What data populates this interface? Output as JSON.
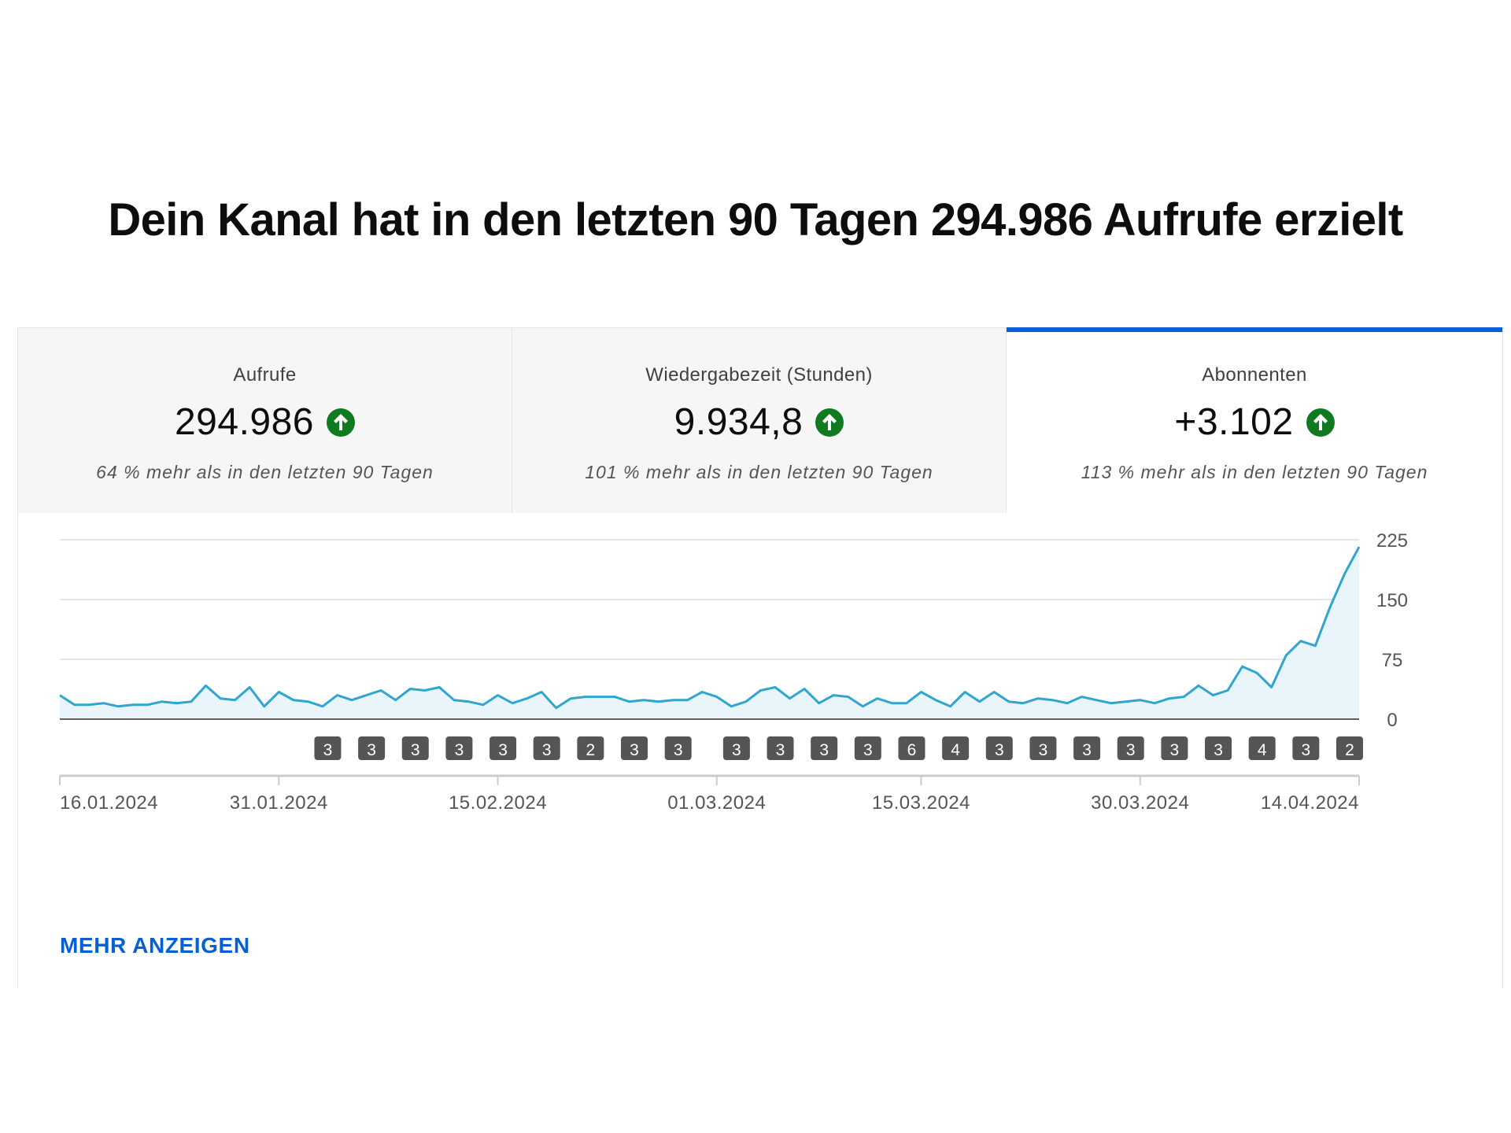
{
  "headline": "Dein Kanal hat in den letzten 90 Tagen 294.986 Aufrufe erzielt",
  "tabs": [
    {
      "label": "Aufrufe",
      "value": "294.986",
      "trend_icon": "arrow-up-circle-icon",
      "comparison": "64 % mehr als in den letzten 90 Tagen",
      "active": false
    },
    {
      "label": "Wiedergabezeit (Stunden)",
      "value": "9.934,8",
      "trend_icon": "arrow-up-circle-icon",
      "comparison": "101 % mehr als in den letzten 90 Tagen",
      "active": false
    },
    {
      "label": "Abonnenten",
      "value": "+3.102",
      "trend_icon": "arrow-up-circle-icon",
      "comparison": "113 % mehr als in den letzten 90 Tagen",
      "active": true
    }
  ],
  "colors": {
    "accent": "#065fd4",
    "trend_up": "#0f7a1f",
    "line": "#2fa6cf",
    "area_fill": "#eaf4fb",
    "marker": "#555555"
  },
  "chart_data": {
    "type": "area",
    "metric": "Abonnenten",
    "x_tick_labels": [
      "16.01.2024",
      "31.01.2024",
      "15.02.2024",
      "01.03.2024",
      "15.03.2024",
      "30.03.2024",
      "14.04.2024"
    ],
    "x_tick_day_index": [
      0,
      15,
      30,
      45,
      59,
      74,
      89
    ],
    "y_ticks": [
      0,
      75,
      150,
      225
    ],
    "ylim": [
      0,
      225
    ],
    "y_axis_position": "right",
    "grid": true,
    "values": [
      30,
      18,
      18,
      20,
      16,
      18,
      18,
      22,
      20,
      22,
      42,
      26,
      24,
      40,
      16,
      34,
      24,
      22,
      16,
      30,
      24,
      30,
      36,
      24,
      38,
      36,
      40,
      24,
      22,
      18,
      30,
      20,
      26,
      34,
      14,
      26,
      28,
      28,
      28,
      22,
      24,
      22,
      24,
      24,
      34,
      28,
      16,
      22,
      36,
      40,
      26,
      38,
      20,
      30,
      28,
      16,
      26,
      20,
      20,
      34,
      24,
      16,
      34,
      22,
      34,
      22,
      20,
      26,
      24,
      20,
      28,
      24,
      20,
      22,
      24,
      20,
      26,
      28,
      42,
      30,
      36,
      66,
      58,
      40,
      80,
      98,
      92,
      140,
      182,
      216
    ],
    "video_markers": {
      "labels": [
        "3",
        "3",
        "3",
        "3",
        "3",
        "3",
        "2",
        "3",
        "3",
        "3",
        "3",
        "3",
        "3",
        "6",
        "4",
        "3",
        "3",
        "3",
        "3",
        "3",
        "3",
        "4",
        "3",
        "2"
      ],
      "day_index": [
        19,
        22,
        25,
        28,
        31,
        34,
        37,
        40,
        43,
        47,
        50,
        53,
        56,
        59,
        62,
        65,
        68,
        71,
        74,
        77,
        80,
        83,
        86,
        89
      ]
    }
  },
  "more_link": "MEHR ANZEIGEN"
}
